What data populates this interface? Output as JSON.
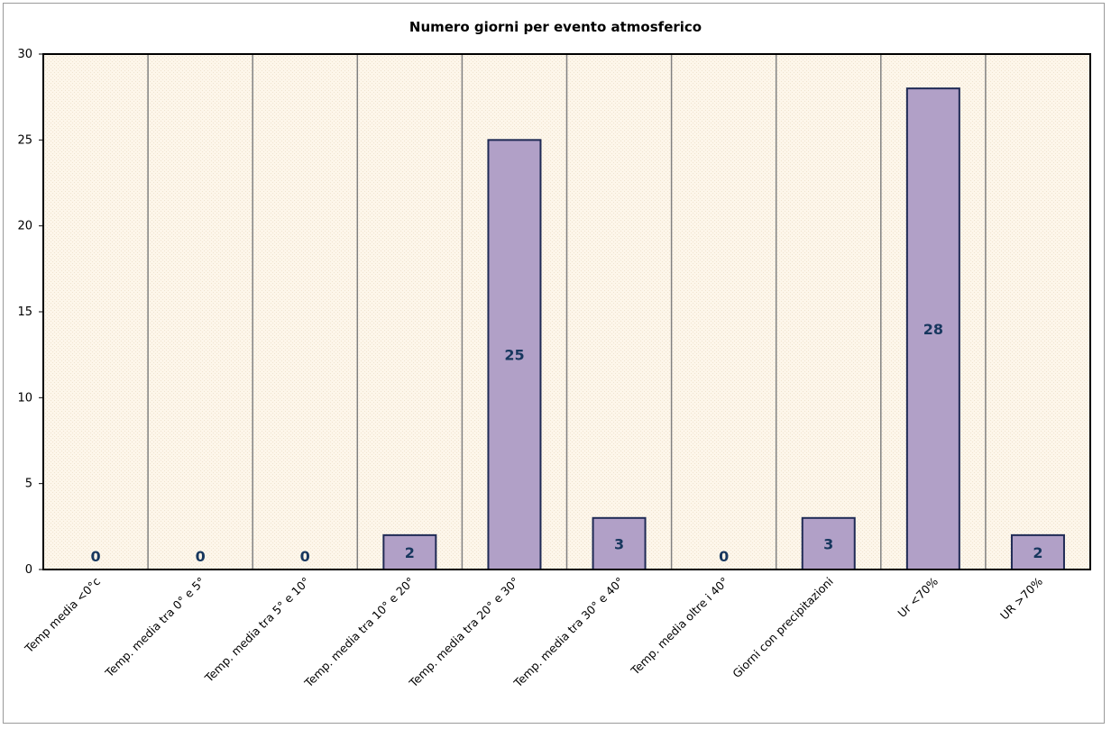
{
  "chart_data": {
    "type": "bar",
    "title": "Numero giorni  per evento atmosferico",
    "categories": [
      "Temp media <0°c",
      "Temp. media tra 0° e 5°",
      "Temp. media tra 5° e 10°",
      "Temp. media tra 10° e 20°",
      "Temp. media tra 20° e 30°",
      "Temp. media tra 30° e 40°",
      "Temp. media oltre i 40°",
      "Giorni con precipitazioni",
      "Ur  <70%",
      "UR >70%"
    ],
    "values": [
      0,
      0,
      0,
      2,
      25,
      3,
      0,
      3,
      28,
      2
    ],
    "ylim": [
      0,
      30
    ],
    "yticks": [
      0,
      5,
      10,
      15,
      20,
      25,
      30
    ],
    "grid": true,
    "legend": "none",
    "colors": {
      "bar_fill": "#b1a0c7",
      "bar_stroke": "#1f2a55",
      "plot_bg": "#fdf6ea",
      "data_label": "#17375e",
      "gridline": "#808080"
    }
  }
}
